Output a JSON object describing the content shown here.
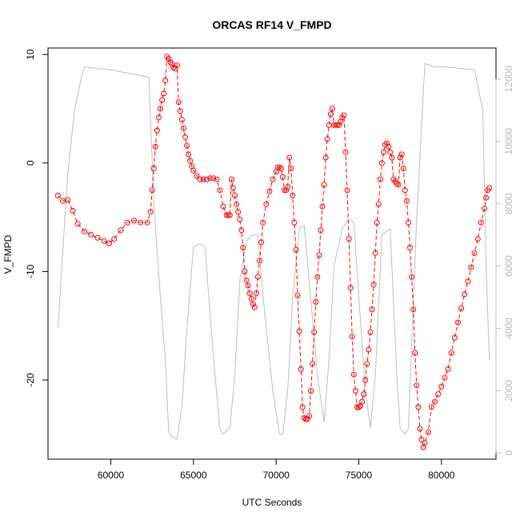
{
  "chart_data": {
    "type": "scatter",
    "title": "ORCAS RF14 V_FMPD",
    "xlabel": "UTC Seconds",
    "ylabel": "V_FMPD",
    "xlim": [
      56200,
      83300
    ],
    "ylim": [
      -27.3,
      10.6
    ],
    "y2lim": [
      -200,
      13000
    ],
    "x_ticks": [
      60000,
      65000,
      70000,
      75000,
      80000
    ],
    "y_ticks": [
      -20,
      -10,
      0,
      10
    ],
    "y2_ticks": [
      0,
      2000,
      4000,
      6000,
      8000,
      10000,
      12000
    ],
    "x_tick_labels": [
      "60000",
      "65000",
      "70000",
      "75000",
      "80000"
    ],
    "y_tick_labels": [
      "-20",
      "-10",
      "0",
      "10"
    ],
    "y2_tick_labels": [
      "0",
      "2000",
      "4000",
      "6000",
      "8000",
      "10000",
      "12000"
    ],
    "grid": false,
    "series": [
      {
        "role": "V_FMPD",
        "style": "points+dashed line",
        "color": "#ff0000",
        "axis": "left",
        "x": [
          56800,
          57100,
          57400,
          57700,
          58000,
          58400,
          58800,
          59200,
          59600,
          59900,
          60200,
          60600,
          61000,
          61400,
          61800,
          62200,
          62400,
          62500,
          62600,
          62700,
          62800,
          62900,
          63000,
          63100,
          63200,
          63300,
          63400,
          63500,
          63600,
          63700,
          63800,
          63900,
          64000,
          64100,
          64200,
          64300,
          64400,
          64500,
          64600,
          64700,
          64800,
          64900,
          65000,
          65200,
          65400,
          65600,
          65800,
          66000,
          66200,
          66400,
          66600,
          66800,
          67000,
          67100,
          67200,
          67300,
          67400,
          67500,
          67600,
          67700,
          67800,
          67900,
          68000,
          68100,
          68200,
          68300,
          68400,
          68500,
          68600,
          68700,
          68800,
          68900,
          69000,
          69100,
          69200,
          69400,
          69600,
          69800,
          70000,
          70100,
          70200,
          70300,
          70400,
          70500,
          70600,
          70700,
          70800,
          70900,
          71000,
          71100,
          71200,
          71300,
          71400,
          71500,
          71600,
          71700,
          71800,
          71900,
          72000,
          72100,
          72200,
          72300,
          72400,
          72500,
          72600,
          72700,
          72800,
          72900,
          73000,
          73100,
          73200,
          73300,
          73400,
          73500,
          73600,
          73700,
          73800,
          73900,
          74000,
          74100,
          74200,
          74300,
          74400,
          74500,
          74600,
          74700,
          74800,
          74900,
          75000,
          75100,
          75200,
          75300,
          75400,
          75500,
          75600,
          75700,
          75800,
          75900,
          76000,
          76100,
          76200,
          76300,
          76400,
          76500,
          76600,
          76700,
          76800,
          76900,
          77000,
          77100,
          77200,
          77300,
          77400,
          77500,
          77600,
          77700,
          77800,
          77900,
          78000,
          78100,
          78200,
          78300,
          78400,
          78500,
          78600,
          78700,
          78800,
          78900,
          79000,
          79200,
          79400,
          79600,
          79800,
          80000,
          80200,
          80400,
          80600,
          80800,
          81000,
          81200,
          81400,
          81600,
          81800,
          82000,
          82200,
          82400,
          82600,
          82700,
          82800,
          82900
        ],
        "y": [
          -3.0,
          -3.5,
          -3.4,
          -4.4,
          -5.6,
          -6.3,
          -6.6,
          -6.9,
          -7.2,
          -7.4,
          -7.0,
          -6.2,
          -5.5,
          -5.3,
          -5.5,
          -5.5,
          -4.5,
          -2.5,
          -0.5,
          1.5,
          3.0,
          4.2,
          5.0,
          5.8,
          6.4,
          7.6,
          9.8,
          9.6,
          9.3,
          9.1,
          8.8,
          8.7,
          9.0,
          5.6,
          4.8,
          4.0,
          3.2,
          2.4,
          1.6,
          0.8,
          0.2,
          -0.3,
          -0.7,
          -1.2,
          -1.5,
          -1.5,
          -1.5,
          -1.4,
          -1.4,
          -1.5,
          -2.5,
          -4.0,
          -4.8,
          -4.8,
          -4.8,
          -1.5,
          -2.3,
          -3.0,
          -3.8,
          -4.5,
          -5.2,
          -6.2,
          -7.8,
          -10.0,
          -10.8,
          -11.3,
          -12.0,
          -12.5,
          -13.0,
          -13.3,
          -12.0,
          -10.5,
          -9.0,
          -7.3,
          -5.5,
          -3.8,
          -2.6,
          -1.5,
          -0.8,
          -0.4,
          -0.4,
          -0.5,
          -1.3,
          -2.5,
          -2.5,
          -2.2,
          0.5,
          -0.5,
          -3.0,
          -5.5,
          -8.0,
          -12.2,
          -15.5,
          -19.0,
          -22.5,
          -23.5,
          -23.6,
          -23.6,
          -23.3,
          -21.0,
          -18.5,
          -15.6,
          -12.8,
          -10.5,
          -8.5,
          -6.2,
          -4.0,
          -2.0,
          0.5,
          2.2,
          3.5,
          4.5,
          5.0,
          3.5,
          3.5,
          3.5,
          3.5,
          3.8,
          4.2,
          4.4,
          1.0,
          -2.5,
          -7.0,
          -11.5,
          -16.0,
          -19.5,
          -21.0,
          -22.5,
          -22.5,
          -22.4,
          -22.0,
          -21.3,
          -20.0,
          -18.5,
          -17.2,
          -15.6,
          -13.5,
          -11.2,
          -8.3,
          -5.5,
          -3.8,
          -1.5,
          0.0,
          1.0,
          1.7,
          1.8,
          1.5,
          1.0,
          0.5,
          -1.5,
          -1.7,
          -1.9,
          -2.0,
          0.5,
          0.8,
          -0.5,
          -2.5,
          -3.5,
          -5.5,
          -7.8,
          -10.5,
          -13.5,
          -17.5,
          -20.5,
          -22.5,
          -24.5,
          -25.5,
          -26.2,
          -25.8,
          -24.8,
          -22.5,
          -22.0,
          -21.3,
          -20.6,
          -19.8,
          -19.0,
          -17.5,
          -16.1,
          -14.7,
          -13.4,
          -12.1,
          -10.9,
          -9.6,
          -8.3,
          -7.0,
          -5.5,
          -4.2,
          -3.2,
          -2.5,
          -2.3
        ]
      },
      {
        "role": "secondary",
        "style": "line",
        "color": "#bebebe",
        "axis": "right",
        "x": [
          56800,
          57400,
          57800,
          58200,
          58400,
          59000,
          60000,
          61000,
          62000,
          62300,
          62600,
          63000,
          63300,
          63500,
          63700,
          64000,
          64300,
          64600,
          65000,
          65300,
          65500,
          65700,
          66000,
          66300,
          66600,
          66800,
          67200,
          67500,
          67800,
          68200,
          68600,
          68900,
          69300,
          69800,
          70200,
          70400,
          70700,
          71000,
          71400,
          71700,
          72000,
          72500,
          72900,
          73200,
          73500,
          74000,
          74400,
          74700,
          75000,
          75400,
          75700,
          76000,
          76400,
          76900,
          77300,
          77500,
          77800,
          78000,
          78200,
          78500,
          79000,
          79500,
          80000,
          81000,
          82000,
          82500,
          82700,
          82900
        ],
        "y": [
          4000,
          9000,
          11000,
          12000,
          12400,
          12350,
          12300,
          12200,
          12100,
          12050,
          8000,
          5000,
          3000,
          700,
          500,
          450,
          1500,
          4000,
          6600,
          6700,
          6700,
          6600,
          4500,
          2500,
          800,
          600,
          800,
          2500,
          5500,
          6800,
          7000,
          7000,
          4500,
          2000,
          600,
          600,
          2000,
          5000,
          7200,
          7300,
          5500,
          2500,
          1000,
          3000,
          6000,
          7200,
          7500,
          7400,
          5000,
          2000,
          800,
          2500,
          7000,
          7200,
          2500,
          800,
          600,
          800,
          3500,
          7500,
          12500,
          12400,
          12400,
          12350,
          12300,
          11000,
          6000,
          3000
        ]
      }
    ]
  }
}
